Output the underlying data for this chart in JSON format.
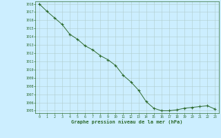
{
  "x": [
    0,
    1,
    2,
    3,
    4,
    5,
    6,
    7,
    8,
    9,
    10,
    11,
    12,
    13,
    14,
    15,
    16,
    17,
    18,
    19,
    20,
    21,
    22,
    23
  ],
  "y": [
    1018.0,
    1017.1,
    1016.3,
    1015.5,
    1014.3,
    1013.7,
    1012.9,
    1012.4,
    1011.7,
    1011.2,
    1010.5,
    1009.3,
    1008.5,
    1007.5,
    1006.1,
    1005.3,
    1005.0,
    1005.0,
    1005.1,
    1005.3,
    1005.4,
    1005.5,
    1005.6,
    1005.2
  ],
  "line_color": "#2d6a2d",
  "marker": "+",
  "marker_color": "#2d6a2d",
  "bg_color": "#cceeff",
  "grid_color": "#b0cccc",
  "xlabel": "Graphe pression niveau de la mer (hPa)",
  "xlabel_color": "#2d6a2d",
  "tick_color": "#2d6a2d",
  "ylim_min": 1005,
  "ylim_max": 1018,
  "xlim_min": 0,
  "xlim_max": 23,
  "yticks": [
    1005,
    1006,
    1007,
    1008,
    1009,
    1010,
    1011,
    1012,
    1013,
    1014,
    1015,
    1016,
    1017,
    1018
  ],
  "xticks": [
    0,
    1,
    2,
    3,
    4,
    5,
    6,
    7,
    8,
    9,
    10,
    11,
    12,
    13,
    14,
    15,
    16,
    17,
    18,
    19,
    20,
    21,
    22,
    23
  ]
}
